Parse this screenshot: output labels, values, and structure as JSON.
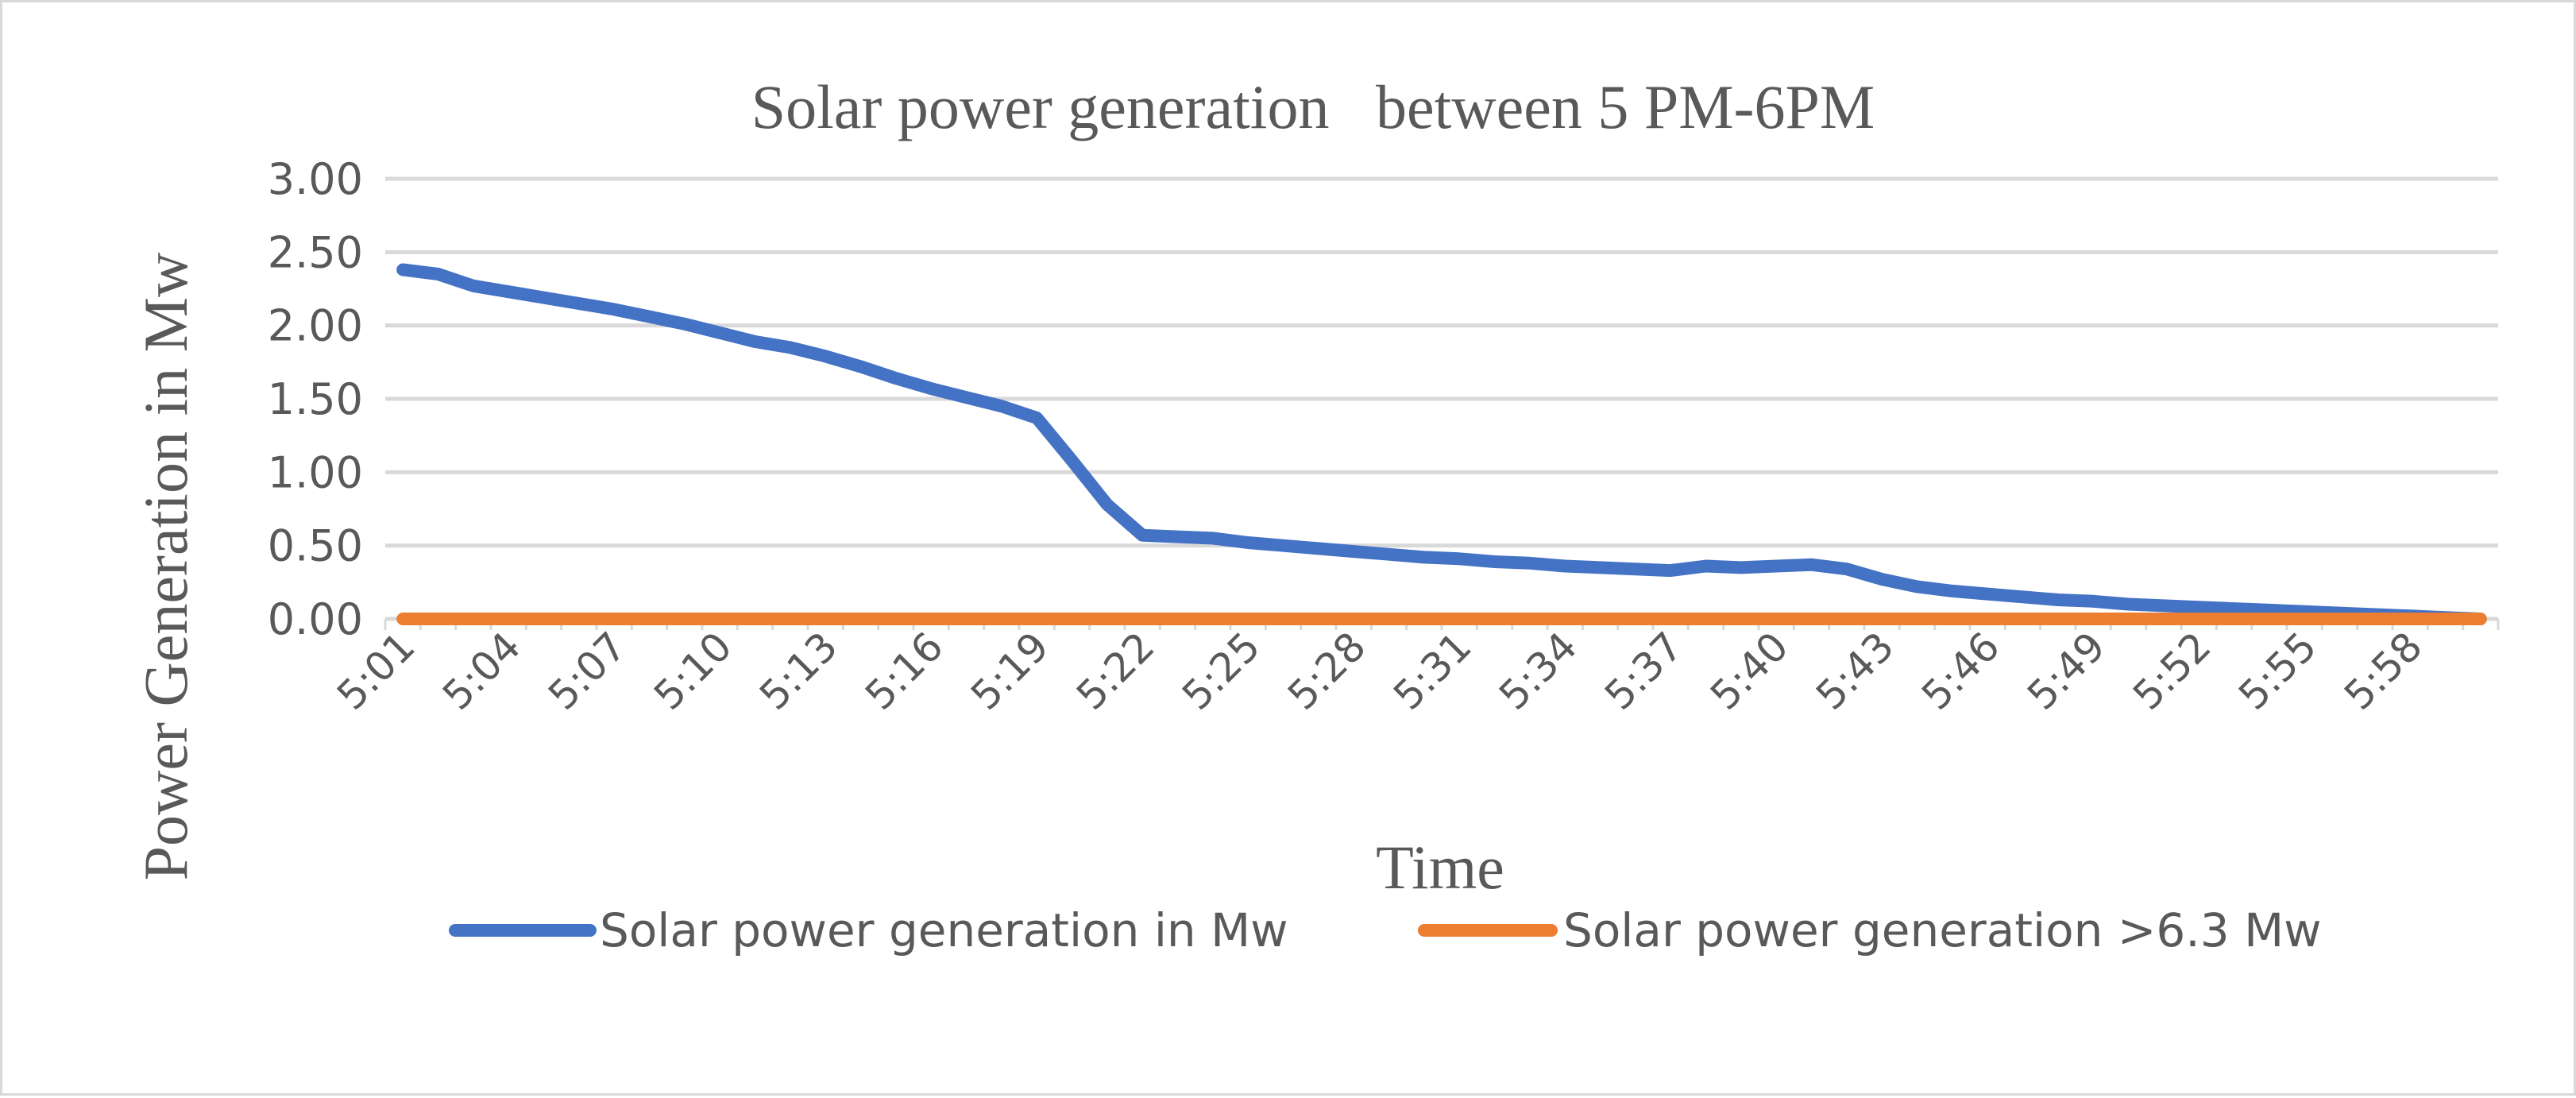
{
  "chart_data": {
    "type": "line",
    "title": "Solar power generation   between 5 PM-6PM",
    "xlabel": "Time",
    "ylabel": "Power Generation in Mw",
    "ylim": [
      0,
      3
    ],
    "yticks": [
      "0.00",
      "0.50",
      "1.00",
      "1.50",
      "2.00",
      "2.50",
      "3.00"
    ],
    "grid": true,
    "legend_position": "bottom",
    "x": [
      "5:01",
      "5:02",
      "5:03",
      "5:04",
      "5:05",
      "5:06",
      "5:07",
      "5:08",
      "5:09",
      "5:10",
      "5:11",
      "5:12",
      "5:13",
      "5:14",
      "5:15",
      "5:16",
      "5:17",
      "5:18",
      "5:19",
      "5:20",
      "5:21",
      "5:22",
      "5:23",
      "5:24",
      "5:25",
      "5:26",
      "5:27",
      "5:28",
      "5:29",
      "5:30",
      "5:31",
      "5:32",
      "5:33",
      "5:34",
      "5:35",
      "5:36",
      "5:37",
      "5:38",
      "5:39",
      "5:40",
      "5:41",
      "5:42",
      "5:43",
      "5:44",
      "5:45",
      "5:46",
      "5:47",
      "5:48",
      "5:49",
      "5:50",
      "5:51",
      "5:52",
      "5:53",
      "5:54",
      "5:55",
      "5:56",
      "5:57",
      "5:58",
      "5:59",
      "6:00"
    ],
    "x_tick_labels": [
      "5:01",
      "5:04",
      "5:07",
      "5:10",
      "5:13",
      "5:16",
      "5:19",
      "5:22",
      "5:25",
      "5:28",
      "5:31",
      "5:34",
      "5:37",
      "5:40",
      "5:43",
      "5:46",
      "5:49",
      "5:52",
      "5:55",
      "5:58"
    ],
    "series": [
      {
        "name": "Solar power generation in Mw",
        "color": "#4472c4",
        "values": [
          2.38,
          2.35,
          2.27,
          2.23,
          2.19,
          2.15,
          2.11,
          2.06,
          2.01,
          1.95,
          1.89,
          1.85,
          1.79,
          1.72,
          1.64,
          1.57,
          1.51,
          1.45,
          1.37,
          1.08,
          0.78,
          0.57,
          0.56,
          0.55,
          0.52,
          0.5,
          0.48,
          0.46,
          0.44,
          0.42,
          0.41,
          0.39,
          0.38,
          0.36,
          0.35,
          0.34,
          0.33,
          0.36,
          0.35,
          0.36,
          0.37,
          0.34,
          0.27,
          0.22,
          0.19,
          0.17,
          0.15,
          0.13,
          0.12,
          0.1,
          0.09,
          0.08,
          0.07,
          0.06,
          0.05,
          0.04,
          0.03,
          0.02,
          0.01,
          0.0
        ]
      },
      {
        "name": "Solar power generation >6.3 Mw",
        "color": "#ed7d31",
        "values": [
          0,
          0,
          0,
          0,
          0,
          0,
          0,
          0,
          0,
          0,
          0,
          0,
          0,
          0,
          0,
          0,
          0,
          0,
          0,
          0,
          0,
          0,
          0,
          0,
          0,
          0,
          0,
          0,
          0,
          0,
          0,
          0,
          0,
          0,
          0,
          0,
          0,
          0,
          0,
          0,
          0,
          0,
          0,
          0,
          0,
          0,
          0,
          0,
          0,
          0,
          0,
          0,
          0,
          0,
          0,
          0,
          0,
          0,
          0,
          0
        ]
      }
    ]
  }
}
